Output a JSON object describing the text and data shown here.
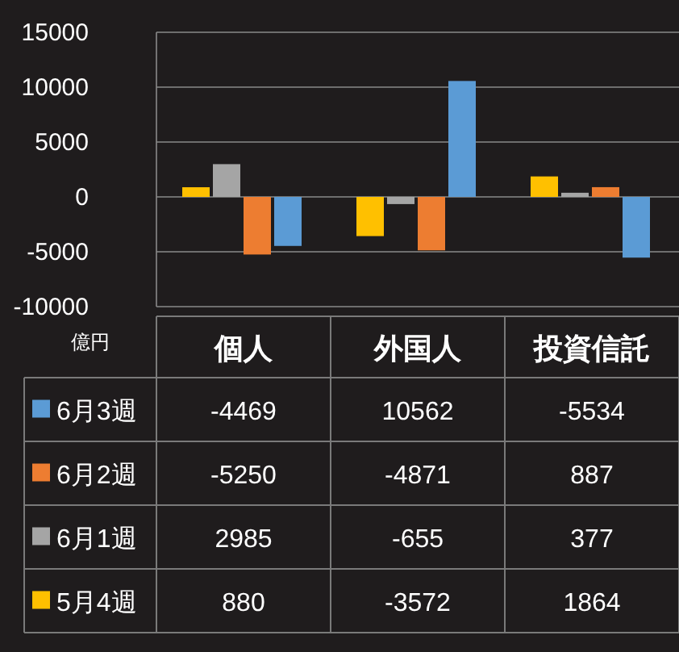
{
  "chart_data": {
    "type": "bar",
    "ylabel": "億円",
    "categories": [
      "個人",
      "外国人",
      "投資信託"
    ],
    "series": [
      {
        "name": "6月3週",
        "color": "#5b9bd5",
        "values": [
          -4469,
          10562,
          -5534
        ]
      },
      {
        "name": "6月2週",
        "color": "#ed7d31",
        "values": [
          -5250,
          -4871,
          887
        ]
      },
      {
        "name": "6月1週",
        "color": "#a5a5a5",
        "values": [
          2985,
          -655,
          377
        ]
      },
      {
        "name": "5月4週",
        "color": "#ffc000",
        "values": [
          880,
          -3572,
          1864
        ]
      }
    ],
    "ylim": [
      -10000,
      15000
    ],
    "yticks": [
      -10000,
      -5000,
      0,
      5000,
      10000,
      15000
    ],
    "grid": "y",
    "legend": "bottom",
    "data_labels": true
  }
}
